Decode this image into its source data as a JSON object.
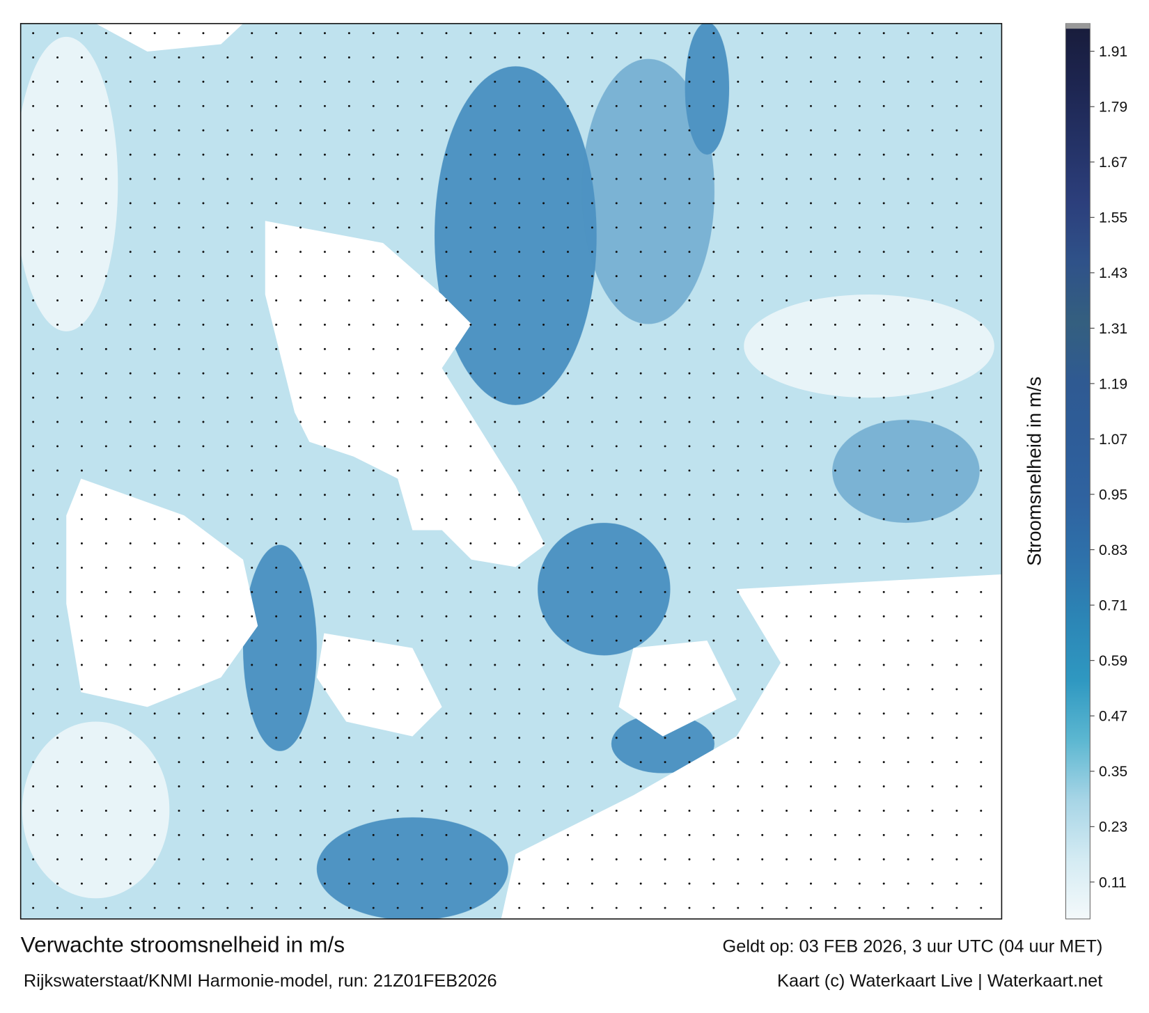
{
  "title": "Verwachte stroomsnelheid in m/s",
  "subtitle": "Rijkswaterstaat/KNMI Harmonie-model, run: 21Z01FEB2026",
  "valid_time": "Geldt op: 03 FEB 2026, 3 uur UTC (04 uur MET)",
  "credit": "Kaart (c) Waterkaart Live | Waterkaart.net",
  "colorbar": {
    "label": "Stroomsnelheid in m/s",
    "ylim": [
      0.03,
      1.97
    ],
    "yticks": [
      0.11,
      0.23,
      0.35,
      0.47,
      0.59,
      0.71,
      0.83,
      0.95,
      1.07,
      1.19,
      1.31,
      1.43,
      1.55,
      1.67,
      1.79,
      1.91
    ],
    "colors": [
      "#f4f9fb",
      "#d4ebf3",
      "#a7d5e6",
      "#5cb7d1",
      "#2f98c1",
      "#2c86b6",
      "#2e72ab",
      "#2f63a0",
      "#2e5d99",
      "#2f5a92",
      "#345f7f",
      "#2f5289",
      "#2c3f7c",
      "#243266",
      "#1d2550",
      "#181c3a"
    ]
  }
}
